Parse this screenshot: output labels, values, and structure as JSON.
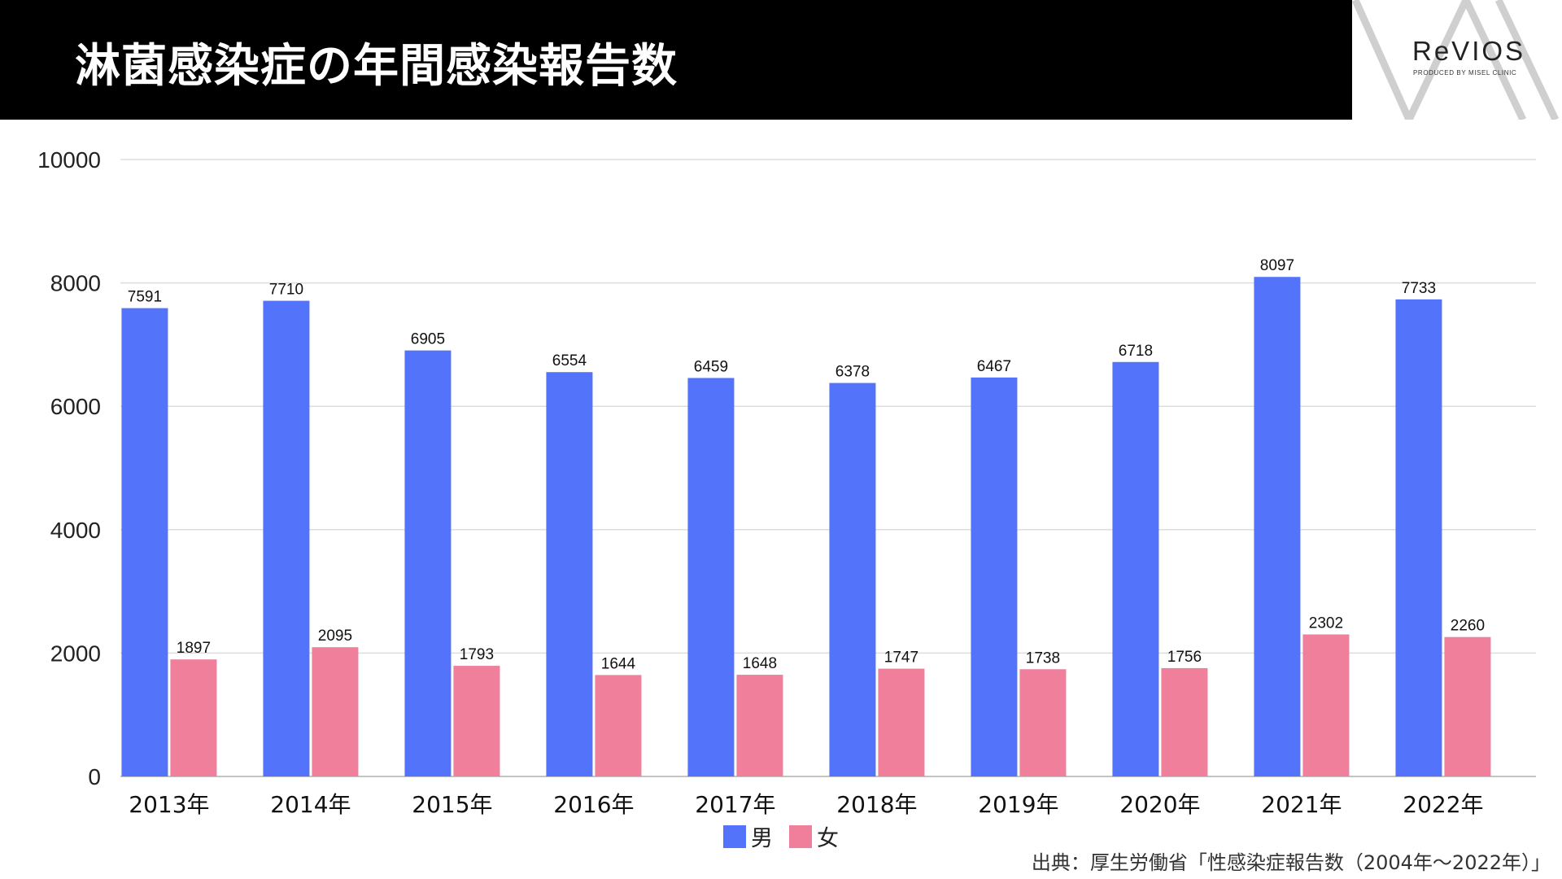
{
  "header": {
    "title": "淋菌感染症の年間感染報告数"
  },
  "logo": {
    "name": "ReVIOS",
    "tagline": "PRODUCED BY MISEL CLINIC"
  },
  "source_note": "出典：厚生労働省「性感染症報告数（2004年〜2022年）」",
  "chart_data": {
    "type": "bar",
    "title": "",
    "xlabel": "",
    "ylabel": "",
    "categories": [
      "2013年",
      "2014年",
      "2015年",
      "2016年",
      "2017年",
      "2018年",
      "2019年",
      "2020年",
      "2021年",
      "2022年"
    ],
    "series": [
      {
        "name": "男",
        "color": "#5373fb",
        "values": [
          7591,
          7710,
          6905,
          6554,
          6459,
          6378,
          6467,
          6718,
          8097,
          7733
        ]
      },
      {
        "name": "女",
        "color": "#f07f9b",
        "values": [
          1897,
          2095,
          1793,
          1644,
          1648,
          1747,
          1738,
          1756,
          2302,
          2260
        ]
      }
    ],
    "ylim": [
      0,
      10000
    ],
    "yticks": [
      0,
      2000,
      4000,
      6000,
      8000,
      10000
    ],
    "grid": true,
    "data_labels": true,
    "legend_position": "bottom"
  }
}
